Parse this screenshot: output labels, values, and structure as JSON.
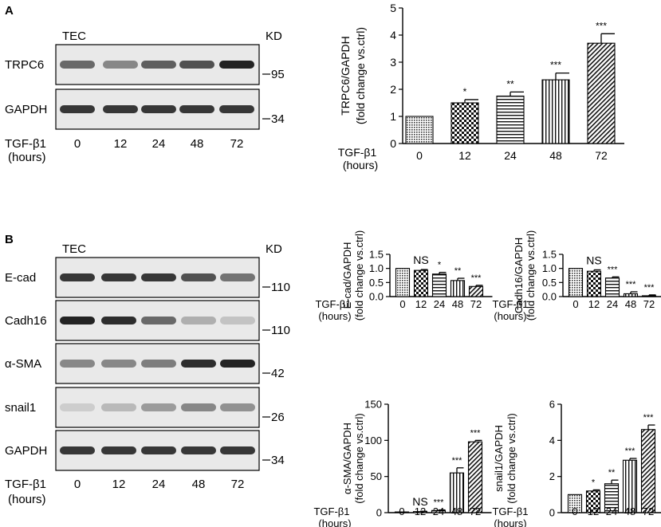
{
  "panels": {
    "A": {
      "letter": "A",
      "blot": {
        "group_label": "TEC",
        "kd_label": "KD",
        "lanes": [
          "0",
          "12",
          "24",
          "48",
          "72"
        ],
        "treatment_label": "TGF-β1",
        "time_label": "(hours)",
        "rows": [
          {
            "protein": "TRPC6",
            "marker": "95",
            "intensity": [
              0.6,
              0.45,
              0.65,
              0.72,
              0.95
            ]
          },
          {
            "protein": "GAPDH",
            "marker": "34",
            "intensity": [
              0.85,
              0.85,
              0.85,
              0.85,
              0.85
            ]
          }
        ]
      }
    },
    "B": {
      "letter": "B",
      "blot": {
        "group_label": "TEC",
        "kd_label": "KD",
        "lanes": [
          "0",
          "12",
          "24",
          "48",
          "72"
        ],
        "treatment_label": "TGF-β1",
        "time_label": "(hours)",
        "rows": [
          {
            "protein": "E-cad",
            "marker": "110",
            "intensity": [
              0.85,
              0.85,
              0.85,
              0.72,
              0.55
            ]
          },
          {
            "protein": "Cadh16",
            "marker": "110",
            "intensity": [
              0.95,
              0.9,
              0.6,
              0.25,
              0.15
            ]
          },
          {
            "protein": "α-SMA",
            "marker": "42",
            "intensity": [
              0.45,
              0.45,
              0.5,
              0.9,
              0.95
            ]
          },
          {
            "protein": "snail1",
            "marker": "26",
            "intensity": [
              0.1,
              0.2,
              0.35,
              0.45,
              0.4
            ]
          },
          {
            "protein": "GAPDH",
            "marker": "34",
            "intensity": [
              0.85,
              0.85,
              0.85,
              0.85,
              0.85
            ]
          }
        ]
      }
    }
  },
  "chart_data": [
    {
      "type": "bar",
      "panel": "A",
      "ylabel_line1": "TRPC6/GAPDH",
      "ylabel_line2": "(fold change vs.ctrl)",
      "treatment_label": "TGF-β1",
      "time_label": "(hours)",
      "categories": [
        "0",
        "12",
        "24",
        "48",
        "72"
      ],
      "values": [
        1.0,
        1.5,
        1.75,
        2.35,
        3.7
      ],
      "errors": [
        0.0,
        0.12,
        0.15,
        0.25,
        0.35
      ],
      "significance": [
        "",
        "*",
        "**",
        "***",
        "***"
      ],
      "ylim": [
        0,
        5
      ],
      "yticks": [
        "0",
        "1",
        "2",
        "3",
        "4",
        "5"
      ],
      "patterns": [
        "dots",
        "checker",
        "hlines",
        "vlines",
        "diag"
      ]
    },
    {
      "type": "bar",
      "panel": "B",
      "ylabel_line1": "E-cad/GAPDH",
      "ylabel_line2": "(fold change vs.ctrl)",
      "treatment_label": "TGF-β1",
      "time_label": "(hours)",
      "categories": [
        "0",
        "12",
        "24",
        "48",
        "72"
      ],
      "values": [
        1.0,
        0.93,
        0.8,
        0.57,
        0.36
      ],
      "errors": [
        0.0,
        0.03,
        0.06,
        0.08,
        0.04
      ],
      "significance": [
        "",
        "NS",
        "*",
        "**",
        "***"
      ],
      "ylim": [
        0,
        1.5
      ],
      "yticks": [
        "0.0",
        "0.5",
        "1.0",
        "1.5"
      ],
      "patterns": [
        "dots",
        "checker",
        "hlines",
        "vlines",
        "diag"
      ]
    },
    {
      "type": "bar",
      "panel": "B",
      "ylabel_line1": "Cadh16/GAPDH",
      "ylabel_line2": "(fold change vs.ctrl)",
      "treatment_label": "TGF-β1",
      "time_label": "(hours)",
      "categories": [
        "0",
        "12",
        "24",
        "48",
        "72"
      ],
      "values": [
        1.0,
        0.9,
        0.66,
        0.1,
        0.03
      ],
      "errors": [
        0.0,
        0.05,
        0.04,
        0.07,
        0.03
      ],
      "significance": [
        "",
        "NS",
        "***",
        "***",
        "***"
      ],
      "ylim": [
        0,
        1.5
      ],
      "yticks": [
        "0.0",
        "0.5",
        "1.0",
        "1.5"
      ],
      "patterns": [
        "dots",
        "checker",
        "hlines",
        "vlines",
        "diag"
      ]
    },
    {
      "type": "bar",
      "panel": "B",
      "ylabel_line1": "α-SMA/GAPDH",
      "ylabel_line2": "(fold change vs.ctrl)",
      "treatment_label": "TGF-β1",
      "time_label": "(hours)",
      "categories": [
        "0",
        "12",
        "24",
        "48",
        "72"
      ],
      "values": [
        1.0,
        1.5,
        3.0,
        55.0,
        98.0
      ],
      "errors": [
        0.0,
        0.5,
        0.8,
        7.0,
        2.0
      ],
      "significance": [
        "",
        "NS",
        "***",
        "***",
        "***"
      ],
      "ylim": [
        0,
        150
      ],
      "yticks": [
        "0",
        "50",
        "100",
        "150"
      ],
      "patterns": [
        "dots",
        "checker",
        "hlines",
        "vlines",
        "diag"
      ]
    },
    {
      "type": "bar",
      "panel": "B",
      "ylabel_line1": "snail1/GAPDH",
      "ylabel_line2": "(fold change vs.ctrl)",
      "treatment_label": "TGF-β1",
      "time_label": "(hours)",
      "categories": [
        "0",
        "12",
        "24",
        "48",
        "72"
      ],
      "values": [
        1.0,
        1.2,
        1.6,
        2.9,
        4.6
      ],
      "errors": [
        0.0,
        0.06,
        0.2,
        0.1,
        0.25
      ],
      "significance": [
        "",
        "*",
        "**",
        "***",
        "***"
      ],
      "ylim": [
        0,
        6
      ],
      "yticks": [
        "0",
        "2",
        "4",
        "6"
      ],
      "patterns": [
        "dots",
        "checker",
        "hlines",
        "vlines",
        "diag"
      ]
    }
  ]
}
